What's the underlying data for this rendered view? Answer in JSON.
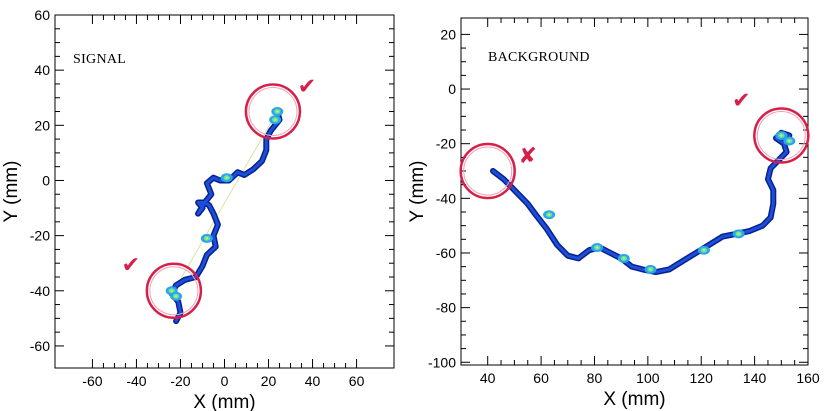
{
  "chart_data": [
    {
      "type": "heatmap",
      "panel_label": "SIGNAL",
      "xlabel": "X (mm)",
      "ylabel": "Y (mm)",
      "xlim": [
        -77,
        77
      ],
      "ylim": [
        -68,
        60
      ],
      "xticks": [
        -60,
        -40,
        -20,
        0,
        20,
        40,
        60
      ],
      "yticks": [
        -60,
        -40,
        -20,
        0,
        20,
        40,
        60
      ],
      "track": [
        [
          -22,
          -51
        ],
        [
          -20,
          -48
        ],
        [
          -21,
          -44
        ],
        [
          -24,
          -41
        ],
        [
          -22,
          -38
        ],
        [
          -18,
          -36
        ],
        [
          -13,
          -35
        ],
        [
          -10,
          -31
        ],
        [
          -8,
          -27
        ],
        [
          -4,
          -24
        ],
        [
          -5,
          -20
        ],
        [
          -3,
          -16
        ],
        [
          -5,
          -12
        ],
        [
          -7,
          -9
        ],
        [
          -9,
          -8
        ],
        [
          -12,
          -8
        ],
        [
          -10,
          -10
        ],
        [
          -12,
          -12
        ],
        [
          -9,
          -8
        ],
        [
          -6,
          -5
        ],
        [
          -8,
          -1
        ],
        [
          -5,
          1
        ],
        [
          -2,
          0
        ],
        [
          2,
          0
        ],
        [
          6,
          3
        ],
        [
          9,
          2
        ],
        [
          13,
          4
        ],
        [
          17,
          7
        ],
        [
          19,
          11
        ],
        [
          19,
          15
        ],
        [
          21,
          18
        ],
        [
          23,
          20
        ],
        [
          25,
          22
        ],
        [
          24,
          25
        ]
      ],
      "faint_line": [
        [
          -23,
          -40
        ],
        [
          24,
          25
        ]
      ],
      "hotspots": [
        [
          -24,
          -40
        ],
        [
          24,
          25
        ],
        [
          23,
          22
        ],
        [
          -22,
          -42
        ],
        [
          1,
          1
        ],
        [
          -8,
          -21
        ]
      ],
      "circles": [
        {
          "x": -23,
          "y": -40,
          "status": "✔"
        },
        {
          "x": 22,
          "y": 25,
          "status": "✔"
        }
      ]
    },
    {
      "type": "heatmap",
      "panel_label": "BACKGROUND",
      "xlabel": "X (mm)",
      "ylabel": "Y (mm)",
      "xlim": [
        30,
        160
      ],
      "ylim": [
        -101,
        26
      ],
      "xticks": [
        40,
        60,
        80,
        100,
        120,
        140,
        160
      ],
      "yticks": [
        -100,
        -80,
        -60,
        -40,
        -20,
        0,
        20
      ],
      "track": [
        [
          42,
          -30
        ],
        [
          46,
          -33
        ],
        [
          50,
          -37
        ],
        [
          55,
          -42
        ],
        [
          58,
          -46
        ],
        [
          62,
          -51
        ],
        [
          66,
          -57
        ],
        [
          70,
          -61
        ],
        [
          74,
          -62
        ],
        [
          78,
          -59
        ],
        [
          82,
          -58
        ],
        [
          86,
          -60
        ],
        [
          90,
          -62
        ],
        [
          94,
          -65
        ],
        [
          98,
          -66
        ],
        [
          103,
          -67
        ],
        [
          108,
          -66
        ],
        [
          113,
          -63
        ],
        [
          118,
          -60
        ],
        [
          123,
          -57
        ],
        [
          128,
          -54
        ],
        [
          133,
          -53
        ],
        [
          138,
          -52
        ],
        [
          143,
          -50
        ],
        [
          146,
          -47
        ],
        [
          147,
          -42
        ],
        [
          147,
          -37
        ],
        [
          145,
          -33
        ],
        [
          146,
          -29
        ],
        [
          149,
          -26
        ],
        [
          152,
          -23
        ],
        [
          151,
          -20
        ],
        [
          148,
          -18
        ],
        [
          150,
          -16
        ],
        [
          153,
          -17
        ]
      ],
      "hotspots": [
        [
          150,
          -17
        ],
        [
          153,
          -19
        ],
        [
          134,
          -53
        ],
        [
          81,
          -58
        ],
        [
          101,
          -66
        ],
        [
          91,
          -62
        ],
        [
          63,
          -46
        ],
        [
          121,
          -59
        ]
      ],
      "circles": [
        {
          "x": 40,
          "y": -30,
          "status": "✘"
        },
        {
          "x": 150,
          "y": -17,
          "status": "✔"
        }
      ]
    }
  ]
}
